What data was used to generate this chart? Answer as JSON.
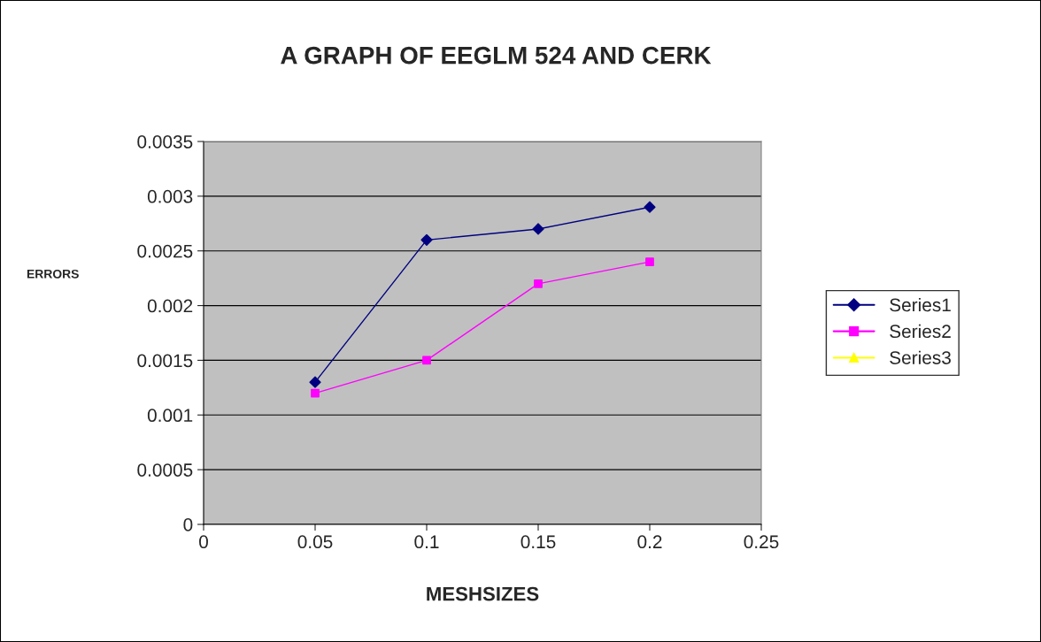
{
  "chart_data": {
    "type": "line",
    "title": "A GRAPH OF EEGLM 524 AND CERK",
    "xlabel": "MESHSIZES",
    "ylabel": "ERRORS",
    "x": [
      0.05,
      0.1,
      0.15,
      0.2
    ],
    "series": [
      {
        "name": "Series1",
        "color": "#000080",
        "marker": "diamond",
        "values": [
          0.0013,
          0.0026,
          0.0027,
          0.0029
        ]
      },
      {
        "name": "Series2",
        "color": "#ff00ff",
        "marker": "square",
        "values": [
          0.0012,
          0.0015,
          0.0022,
          0.0024
        ]
      },
      {
        "name": "Series3",
        "color": "#ffff00",
        "marker": "triangle",
        "values": [
          null,
          null,
          null,
          null
        ]
      }
    ],
    "xlim": [
      0,
      0.25
    ],
    "xticks": [
      0,
      0.05,
      0.1,
      0.15,
      0.2,
      0.25
    ],
    "ylim": [
      0,
      0.0035
    ],
    "yticks": [
      0,
      0.0005,
      0.001,
      0.0015,
      0.002,
      0.0025,
      0.003,
      0.0035
    ],
    "grid": "y",
    "legend": "right",
    "line_style": "solid"
  }
}
